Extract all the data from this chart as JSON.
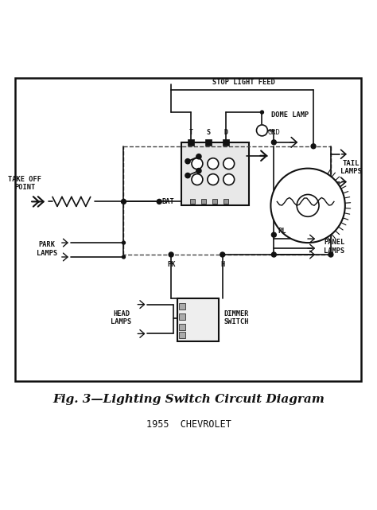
{
  "bg_color": "#ffffff",
  "line_color": "#111111",
  "dash_color": "#444444",
  "caption": "Fig. 3—Lighting Switch Circuit Diagram",
  "subtitle": "1955  CHEVROLET",
  "caption_fontsize": 11,
  "subtitle_fontsize": 8.5,
  "labels": {
    "stop_light_feed": "STOP LIGHT FEED",
    "dome_lamp": "DOME LAMP",
    "take_off_point": "TAKE OFF\nPOINT",
    "bat": "BAT",
    "park_lamps": "PARK\nLAMPS",
    "tail_lamps": "TAIL\nLAMPS",
    "panel_lamps": "PANEL\nLAMPS",
    "head_lamps": "HEAD\nLAMPS",
    "dimmer_switch": "DIMMER\nSWITCH",
    "grd": "GRD",
    "pk": "PK",
    "h": "H",
    "pl": "PL",
    "t": "T",
    "s": "S",
    "d": "D"
  }
}
